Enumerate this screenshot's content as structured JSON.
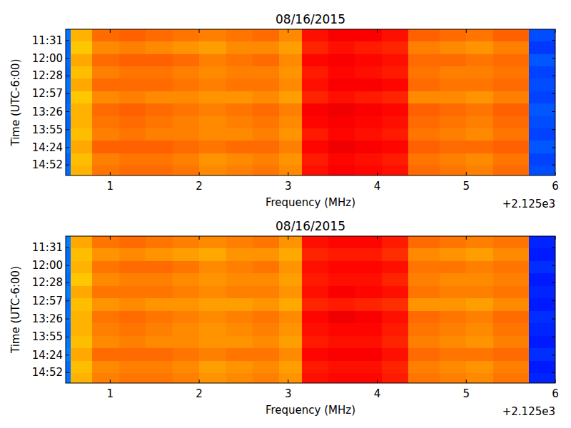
{
  "chart_data": [
    {
      "type": "heatmap",
      "title": "08/16/2015",
      "x_label": "Frequency (MHz)",
      "y_label": "Time (UTC-6:00)",
      "x_offset_label": "+2.125e3",
      "xlim": [
        0.5,
        6
      ],
      "xticks": [
        1,
        2,
        3,
        4,
        5,
        6
      ],
      "ylim": [
        673,
        909
      ],
      "yticks": [
        {
          "value": 691,
          "label": "11:31"
        },
        {
          "value": 720,
          "label": "12:00"
        },
        {
          "value": 748,
          "label": "12:28"
        },
        {
          "value": 777,
          "label": "12:57"
        },
        {
          "value": 806,
          "label": "13:26"
        },
        {
          "value": 835,
          "label": "13:55"
        },
        {
          "value": 864,
          "label": "14:24"
        },
        {
          "value": 892,
          "label": "14:52"
        }
      ],
      "color_range": [
        0,
        1
      ],
      "x_edges": [
        0.5,
        0.56,
        0.8,
        1.1,
        1.4,
        1.7,
        2.0,
        2.3,
        2.6,
        2.9,
        3.15,
        3.45,
        3.75,
        4.05,
        4.35,
        4.7,
        5.0,
        5.3,
        5.7,
        6.0
      ],
      "y_edges": [
        673,
        693,
        713,
        733,
        753,
        773,
        793,
        813,
        833,
        853,
        873,
        893,
        909
      ],
      "cells": [
        [
          0.24,
          0.7,
          0.77,
          0.78,
          0.77,
          0.76,
          0.75,
          0.76,
          0.77,
          0.74,
          0.86,
          0.88,
          0.88,
          0.86,
          0.78,
          0.77,
          0.76,
          0.78,
          0.2
        ],
        [
          0.22,
          0.68,
          0.74,
          0.75,
          0.74,
          0.73,
          0.72,
          0.74,
          0.74,
          0.72,
          0.84,
          0.86,
          0.85,
          0.84,
          0.75,
          0.74,
          0.73,
          0.75,
          0.18
        ],
        [
          0.23,
          0.71,
          0.77,
          0.78,
          0.78,
          0.77,
          0.75,
          0.76,
          0.77,
          0.74,
          0.87,
          0.88,
          0.87,
          0.86,
          0.77,
          0.77,
          0.76,
          0.77,
          0.21
        ],
        [
          0.22,
          0.69,
          0.75,
          0.76,
          0.76,
          0.75,
          0.74,
          0.75,
          0.75,
          0.73,
          0.85,
          0.87,
          0.86,
          0.85,
          0.76,
          0.75,
          0.75,
          0.76,
          0.19
        ],
        [
          0.24,
          0.71,
          0.77,
          0.77,
          0.77,
          0.76,
          0.75,
          0.76,
          0.76,
          0.74,
          0.86,
          0.88,
          0.88,
          0.87,
          0.77,
          0.76,
          0.76,
          0.77,
          0.2
        ],
        [
          0.22,
          0.68,
          0.74,
          0.75,
          0.74,
          0.74,
          0.73,
          0.73,
          0.74,
          0.72,
          0.84,
          0.86,
          0.85,
          0.84,
          0.74,
          0.74,
          0.73,
          0.75,
          0.19
        ],
        [
          0.23,
          0.7,
          0.77,
          0.78,
          0.77,
          0.76,
          0.75,
          0.76,
          0.77,
          0.75,
          0.88,
          0.89,
          0.88,
          0.87,
          0.78,
          0.77,
          0.76,
          0.78,
          0.21
        ],
        [
          0.22,
          0.7,
          0.76,
          0.77,
          0.76,
          0.75,
          0.74,
          0.75,
          0.76,
          0.74,
          0.87,
          0.88,
          0.87,
          0.86,
          0.77,
          0.76,
          0.75,
          0.77,
          0.2
        ],
        [
          0.23,
          0.69,
          0.75,
          0.76,
          0.75,
          0.75,
          0.74,
          0.74,
          0.75,
          0.73,
          0.85,
          0.87,
          0.86,
          0.85,
          0.76,
          0.75,
          0.74,
          0.76,
          0.19
        ],
        [
          0.24,
          0.71,
          0.78,
          0.78,
          0.78,
          0.77,
          0.76,
          0.77,
          0.77,
          0.75,
          0.87,
          0.89,
          0.88,
          0.87,
          0.78,
          0.77,
          0.77,
          0.78,
          0.21
        ],
        [
          0.22,
          0.69,
          0.75,
          0.76,
          0.76,
          0.75,
          0.73,
          0.74,
          0.75,
          0.73,
          0.85,
          0.87,
          0.86,
          0.85,
          0.76,
          0.75,
          0.74,
          0.76,
          0.19
        ],
        [
          0.23,
          0.7,
          0.76,
          0.77,
          0.77,
          0.76,
          0.74,
          0.75,
          0.76,
          0.74,
          0.86,
          0.88,
          0.87,
          0.86,
          0.77,
          0.76,
          0.75,
          0.77,
          0.2
        ]
      ]
    },
    {
      "type": "heatmap",
      "title": "08/16/2015",
      "x_label": "Frequency (MHz)",
      "y_label": "Time (UTC-6:00)",
      "x_offset_label": "+2.125e3",
      "xlim": [
        0.5,
        6
      ],
      "xticks": [
        1,
        2,
        3,
        4,
        5,
        6
      ],
      "ylim": [
        673,
        909
      ],
      "yticks": [
        {
          "value": 691,
          "label": "11:31"
        },
        {
          "value": 720,
          "label": "12:00"
        },
        {
          "value": 748,
          "label": "12:28"
        },
        {
          "value": 777,
          "label": "12:57"
        },
        {
          "value": 806,
          "label": "13:26"
        },
        {
          "value": 835,
          "label": "13:55"
        },
        {
          "value": 864,
          "label": "14:24"
        },
        {
          "value": 892,
          "label": "14:52"
        }
      ],
      "color_range": [
        0,
        1
      ],
      "x_edges": [
        0.5,
        0.56,
        0.8,
        1.1,
        1.4,
        1.7,
        2.0,
        2.3,
        2.6,
        2.9,
        3.15,
        3.45,
        3.75,
        4.05,
        4.35,
        4.7,
        5.0,
        5.3,
        5.7,
        6.0
      ],
      "y_edges": [
        673,
        693,
        713,
        733,
        753,
        773,
        793,
        813,
        833,
        853,
        873,
        893,
        909
      ],
      "cells": [
        [
          0.25,
          0.71,
          0.76,
          0.77,
          0.76,
          0.75,
          0.74,
          0.75,
          0.76,
          0.73,
          0.86,
          0.87,
          0.87,
          0.85,
          0.77,
          0.76,
          0.75,
          0.76,
          0.16
        ],
        [
          0.23,
          0.69,
          0.73,
          0.74,
          0.73,
          0.72,
          0.71,
          0.73,
          0.73,
          0.71,
          0.84,
          0.85,
          0.85,
          0.83,
          0.74,
          0.73,
          0.72,
          0.74,
          0.15
        ],
        [
          0.24,
          0.7,
          0.76,
          0.77,
          0.77,
          0.76,
          0.74,
          0.75,
          0.76,
          0.73,
          0.86,
          0.87,
          0.87,
          0.86,
          0.76,
          0.76,
          0.75,
          0.76,
          0.17
        ],
        [
          0.23,
          0.68,
          0.74,
          0.75,
          0.75,
          0.74,
          0.73,
          0.74,
          0.74,
          0.72,
          0.85,
          0.86,
          0.86,
          0.84,
          0.75,
          0.74,
          0.74,
          0.75,
          0.15
        ],
        [
          0.25,
          0.71,
          0.76,
          0.76,
          0.76,
          0.75,
          0.74,
          0.75,
          0.75,
          0.73,
          0.86,
          0.88,
          0.87,
          0.86,
          0.76,
          0.75,
          0.75,
          0.76,
          0.16
        ],
        [
          0.23,
          0.69,
          0.73,
          0.74,
          0.73,
          0.73,
          0.72,
          0.72,
          0.73,
          0.71,
          0.84,
          0.85,
          0.84,
          0.83,
          0.73,
          0.73,
          0.72,
          0.74,
          0.15
        ],
        [
          0.24,
          0.7,
          0.76,
          0.77,
          0.76,
          0.75,
          0.74,
          0.75,
          0.76,
          0.74,
          0.87,
          0.89,
          0.88,
          0.86,
          0.77,
          0.76,
          0.75,
          0.77,
          0.17
        ],
        [
          0.23,
          0.7,
          0.75,
          0.76,
          0.75,
          0.74,
          0.73,
          0.74,
          0.75,
          0.73,
          0.86,
          0.87,
          0.87,
          0.85,
          0.76,
          0.75,
          0.74,
          0.76,
          0.16
        ],
        [
          0.24,
          0.69,
          0.74,
          0.75,
          0.74,
          0.74,
          0.73,
          0.73,
          0.74,
          0.72,
          0.85,
          0.86,
          0.86,
          0.84,
          0.75,
          0.74,
          0.73,
          0.75,
          0.15
        ],
        [
          0.25,
          0.71,
          0.77,
          0.77,
          0.77,
          0.76,
          0.75,
          0.76,
          0.76,
          0.74,
          0.87,
          0.88,
          0.88,
          0.86,
          0.77,
          0.76,
          0.76,
          0.77,
          0.17
        ],
        [
          0.23,
          0.69,
          0.74,
          0.75,
          0.75,
          0.74,
          0.72,
          0.73,
          0.74,
          0.72,
          0.85,
          0.86,
          0.86,
          0.84,
          0.75,
          0.74,
          0.73,
          0.75,
          0.15
        ],
        [
          0.24,
          0.7,
          0.75,
          0.76,
          0.76,
          0.75,
          0.73,
          0.74,
          0.75,
          0.73,
          0.86,
          0.87,
          0.87,
          0.85,
          0.76,
          0.75,
          0.74,
          0.76,
          0.16
        ]
      ]
    }
  ]
}
